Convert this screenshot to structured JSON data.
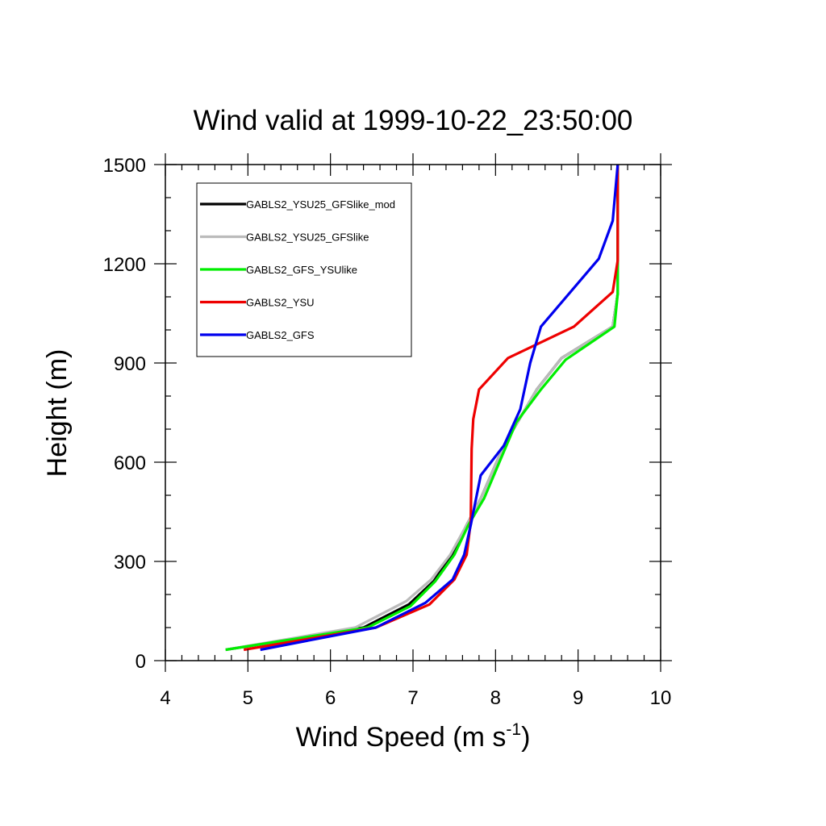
{
  "chart_data": {
    "type": "line",
    "title": "Wind valid at 1999-10-22_23:50:00",
    "xlabel": {
      "main": "Wind Speed (m s",
      "sup": "-1",
      "close": ")"
    },
    "ylabel": "Height (m)",
    "xlim": [
      4,
      10
    ],
    "ylim": [
      0,
      1500
    ],
    "x_ticks": [
      4,
      5,
      6,
      7,
      8,
      9,
      10
    ],
    "y_ticks": [
      0,
      300,
      600,
      900,
      1200,
      1500
    ],
    "x_minor_step": 0.2,
    "y_minor_step": 100,
    "legend_position": "top-left",
    "grid": false,
    "series": [
      {
        "name": "GABLS2_YSU25_GFSlike_mod",
        "color": "#000000",
        "points": [
          [
            4.73,
            33
          ],
          [
            6.4,
            100
          ],
          [
            6.95,
            170
          ],
          [
            7.25,
            240
          ],
          [
            7.47,
            320
          ],
          [
            7.65,
            410
          ],
          [
            7.82,
            490
          ],
          [
            8.1,
            650
          ],
          [
            8.5,
            820
          ],
          [
            8.8,
            915
          ],
          [
            9.42,
            1010
          ],
          [
            9.48,
            1110
          ],
          [
            9.48,
            1210
          ],
          [
            9.48,
            1320
          ],
          [
            9.48,
            1500
          ]
        ]
      },
      {
        "name": "GABLS2_YSU25_GFSlike",
        "color": "#bbbbbb",
        "points": [
          [
            4.73,
            33
          ],
          [
            6.3,
            100
          ],
          [
            6.92,
            180
          ],
          [
            7.22,
            245
          ],
          [
            7.45,
            320
          ],
          [
            7.65,
            410
          ],
          [
            7.82,
            490
          ],
          [
            8.1,
            650
          ],
          [
            8.5,
            820
          ],
          [
            8.8,
            915
          ],
          [
            9.42,
            1010
          ],
          [
            9.48,
            1110
          ],
          [
            9.48,
            1210
          ],
          [
            9.48,
            1320
          ],
          [
            9.48,
            1500
          ]
        ]
      },
      {
        "name": "GABLS2_GFS_YSUlike",
        "color": "#00ee00",
        "points": [
          [
            4.73,
            33
          ],
          [
            6.45,
            100
          ],
          [
            6.97,
            165
          ],
          [
            7.27,
            240
          ],
          [
            7.5,
            320
          ],
          [
            7.67,
            410
          ],
          [
            7.86,
            490
          ],
          [
            8.25,
            720
          ],
          [
            8.55,
            820
          ],
          [
            8.85,
            910
          ],
          [
            9.44,
            1010
          ],
          [
            9.48,
            1110
          ],
          [
            9.48,
            1210
          ],
          [
            9.48,
            1320
          ],
          [
            9.48,
            1500
          ]
        ]
      },
      {
        "name": "GABLS2_YSU",
        "color": "#ee0000",
        "points": [
          [
            4.95,
            33
          ],
          [
            6.55,
            100
          ],
          [
            7.2,
            170
          ],
          [
            7.5,
            245
          ],
          [
            7.65,
            320
          ],
          [
            7.7,
            420
          ],
          [
            7.71,
            640
          ],
          [
            7.73,
            730
          ],
          [
            7.8,
            820
          ],
          [
            8.15,
            915
          ],
          [
            8.95,
            1010
          ],
          [
            9.42,
            1115
          ],
          [
            9.48,
            1210
          ],
          [
            9.48,
            1320
          ],
          [
            9.48,
            1500
          ]
        ]
      },
      {
        "name": "GABLS2_GFS",
        "color": "#0000ee",
        "points": [
          [
            5.15,
            33
          ],
          [
            6.55,
            100
          ],
          [
            7.15,
            175
          ],
          [
            7.48,
            245
          ],
          [
            7.62,
            320
          ],
          [
            7.7,
            410
          ],
          [
            7.82,
            560
          ],
          [
            8.1,
            650
          ],
          [
            8.3,
            760
          ],
          [
            8.42,
            900
          ],
          [
            8.55,
            1010
          ],
          [
            9.25,
            1215
          ],
          [
            9.42,
            1330
          ],
          [
            9.48,
            1500
          ]
        ]
      }
    ]
  }
}
